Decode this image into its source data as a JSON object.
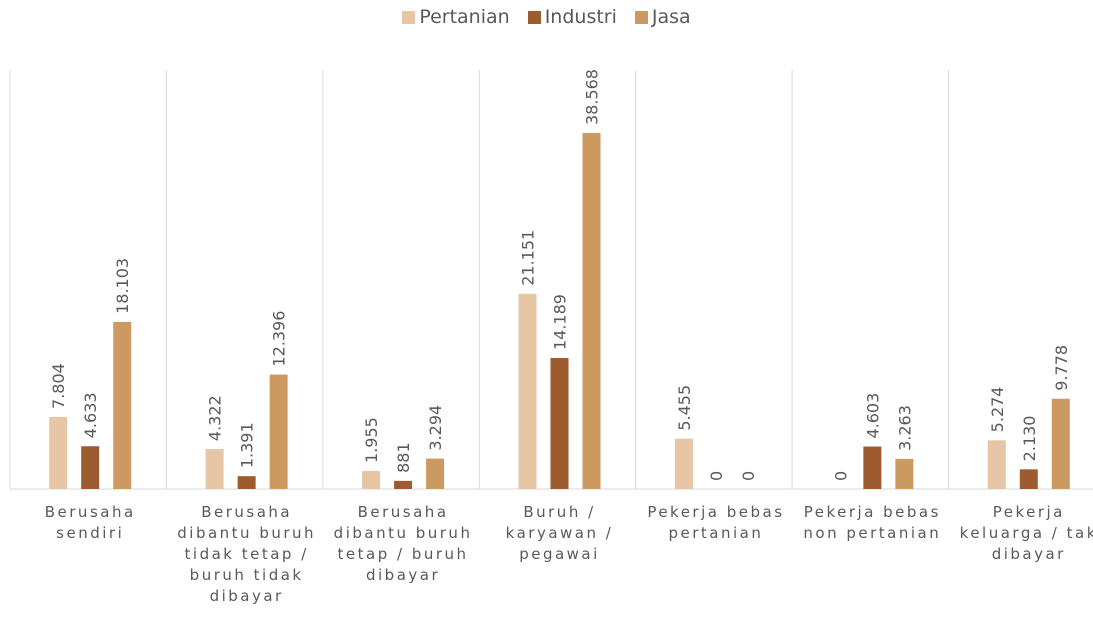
{
  "chart_data": {
    "type": "bar",
    "categories": [
      "Berusaha sendiri",
      "Berusaha dibantu buruh tidak tetap / buruh tidak dibayar",
      "Berusaha dibantu buruh tetap / buruh dibayar",
      "Buruh / karyawan / pegawai",
      "Pekerja bebas pertanian",
      "Pekerja bebas non pertanian",
      "Pekerja keluarga / tak dibayar"
    ],
    "series": [
      {
        "name": "Pertanian",
        "color": "#e6c6a4",
        "values": [
          7804,
          4322,
          1955,
          21151,
          5455,
          0,
          5274
        ],
        "value_labels": [
          "7.804",
          "4.322",
          "1.955",
          "21.151",
          "5.455",
          "0",
          "5.274"
        ]
      },
      {
        "name": "Industri",
        "color": "#9e5b2f",
        "values": [
          4633,
          1391,
          881,
          14189,
          0,
          4603,
          2130
        ],
        "value_labels": [
          "4.633",
          "1.391",
          "881",
          "14.189",
          "0",
          "4.603",
          "2.130"
        ]
      },
      {
        "name": "Jasa",
        "color": "#cc9960",
        "values": [
          18103,
          12396,
          3294,
          38568,
          0,
          3263,
          9778
        ],
        "value_labels": [
          "18.103",
          "12.396",
          "3.294",
          "38.568",
          "0",
          "3.263",
          "9.778"
        ]
      }
    ]
  }
}
